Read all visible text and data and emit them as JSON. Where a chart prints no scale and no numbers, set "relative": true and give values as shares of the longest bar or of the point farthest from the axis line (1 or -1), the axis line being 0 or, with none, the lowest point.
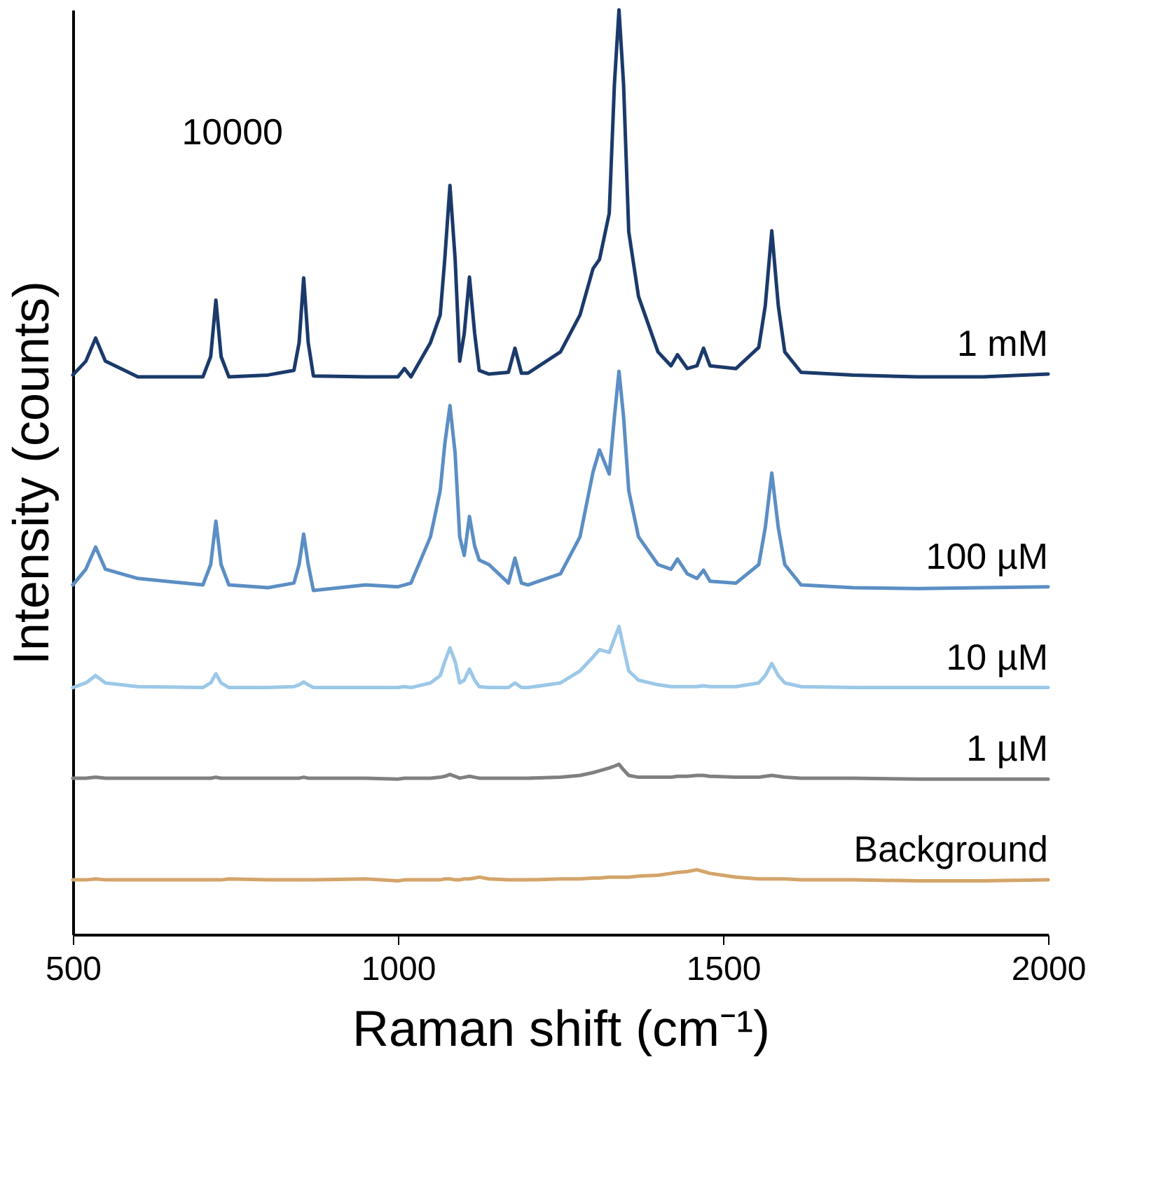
{
  "chart_data": {
    "type": "line",
    "relative": true,
    "xlabel": "Raman shift (cm⁻¹)",
    "ylabel": "Intensity (counts)",
    "xlim": [
      500,
      2000
    ],
    "xticks": [
      500,
      1000,
      1500,
      2000
    ],
    "grid": false,
    "annotations": [
      "10000"
    ],
    "x": [
      500,
      520,
      535,
      550,
      600,
      700,
      712,
      720,
      728,
      740,
      800,
      840,
      848,
      855,
      862,
      870,
      950,
      1000,
      1010,
      1020,
      1050,
      1065,
      1072,
      1080,
      1088,
      1095,
      1102,
      1110,
      1118,
      1125,
      1140,
      1170,
      1180,
      1190,
      1200,
      1250,
      1280,
      1300,
      1310,
      1325,
      1333,
      1340,
      1347,
      1355,
      1370,
      1400,
      1420,
      1430,
      1445,
      1460,
      1470,
      1480,
      1520,
      1555,
      1565,
      1575,
      1585,
      1595,
      1620,
      1700,
      1800,
      1900,
      2000
    ],
    "series": [
      {
        "name": "1 mM",
        "color": "#1b3a6b",
        "values": [
          0.605,
          0.62,
          0.645,
          0.62,
          0.603,
          0.603,
          0.625,
          0.686,
          0.625,
          0.603,
          0.605,
          0.61,
          0.64,
          0.71,
          0.64,
          0.604,
          0.603,
          0.603,
          0.612,
          0.603,
          0.64,
          0.67,
          0.73,
          0.81,
          0.73,
          0.62,
          0.65,
          0.711,
          0.65,
          0.61,
          0.606,
          0.608,
          0.634,
          0.607,
          0.607,
          0.63,
          0.67,
          0.72,
          0.73,
          0.78,
          0.92,
          1.0,
          0.92,
          0.76,
          0.69,
          0.63,
          0.615,
          0.627,
          0.612,
          0.615,
          0.634,
          0.615,
          0.612,
          0.635,
          0.68,
          0.761,
          0.68,
          0.63,
          0.608,
          0.605,
          0.603,
          0.603,
          0.606
        ]
      },
      {
        "name": "100 µM",
        "color": "#5b8ec4",
        "values": [
          0.378,
          0.395,
          0.419,
          0.395,
          0.385,
          0.378,
          0.4,
          0.447,
          0.4,
          0.378,
          0.375,
          0.38,
          0.4,
          0.433,
          0.4,
          0.372,
          0.378,
          0.376,
          0.378,
          0.38,
          0.43,
          0.48,
          0.53,
          0.572,
          0.52,
          0.43,
          0.41,
          0.452,
          0.42,
          0.405,
          0.4,
          0.38,
          0.407,
          0.38,
          0.378,
          0.39,
          0.43,
          0.5,
          0.524,
          0.498,
          0.56,
          0.609,
          0.56,
          0.48,
          0.43,
          0.4,
          0.395,
          0.406,
          0.39,
          0.385,
          0.394,
          0.382,
          0.38,
          0.4,
          0.44,
          0.499,
          0.44,
          0.4,
          0.378,
          0.375,
          0.374,
          0.375,
          0.376
        ]
      },
      {
        "name": "10 µM",
        "color": "#9cc8e8",
        "values": [
          0.267,
          0.272,
          0.28,
          0.272,
          0.268,
          0.267,
          0.272,
          0.282,
          0.272,
          0.267,
          0.267,
          0.268,
          0.27,
          0.273,
          0.27,
          0.267,
          0.267,
          0.267,
          0.268,
          0.267,
          0.272,
          0.28,
          0.295,
          0.31,
          0.295,
          0.272,
          0.275,
          0.287,
          0.275,
          0.268,
          0.267,
          0.267,
          0.272,
          0.267,
          0.267,
          0.272,
          0.285,
          0.3,
          0.308,
          0.305,
          0.32,
          0.333,
          0.31,
          0.285,
          0.275,
          0.27,
          0.268,
          0.268,
          0.268,
          0.268,
          0.269,
          0.268,
          0.268,
          0.272,
          0.28,
          0.293,
          0.28,
          0.272,
          0.268,
          0.267,
          0.267,
          0.267,
          0.267
        ]
      },
      {
        "name": "1 µM",
        "color": "#808080",
        "values": [
          0.169,
          0.169,
          0.17,
          0.169,
          0.169,
          0.169,
          0.169,
          0.17,
          0.169,
          0.169,
          0.169,
          0.169,
          0.169,
          0.17,
          0.169,
          0.169,
          0.169,
          0.168,
          0.169,
          0.169,
          0.169,
          0.17,
          0.171,
          0.173,
          0.171,
          0.169,
          0.17,
          0.171,
          0.17,
          0.169,
          0.169,
          0.169,
          0.169,
          0.169,
          0.169,
          0.17,
          0.172,
          0.175,
          0.177,
          0.18,
          0.182,
          0.184,
          0.178,
          0.172,
          0.17,
          0.17,
          0.17,
          0.171,
          0.171,
          0.172,
          0.172,
          0.171,
          0.17,
          0.17,
          0.171,
          0.172,
          0.171,
          0.17,
          0.169,
          0.169,
          0.168,
          0.168,
          0.168
        ]
      },
      {
        "name": "Background",
        "color": "#d4a46a",
        "values": [
          0.059,
          0.059,
          0.06,
          0.059,
          0.059,
          0.059,
          0.059,
          0.059,
          0.059,
          0.06,
          0.059,
          0.059,
          0.059,
          0.059,
          0.059,
          0.059,
          0.06,
          0.058,
          0.059,
          0.059,
          0.059,
          0.059,
          0.06,
          0.06,
          0.059,
          0.059,
          0.06,
          0.06,
          0.061,
          0.062,
          0.06,
          0.059,
          0.059,
          0.059,
          0.059,
          0.06,
          0.06,
          0.061,
          0.061,
          0.062,
          0.062,
          0.062,
          0.062,
          0.062,
          0.063,
          0.064,
          0.066,
          0.067,
          0.068,
          0.07,
          0.068,
          0.066,
          0.062,
          0.06,
          0.06,
          0.06,
          0.06,
          0.06,
          0.059,
          0.059,
          0.058,
          0.058,
          0.059
        ]
      }
    ]
  }
}
